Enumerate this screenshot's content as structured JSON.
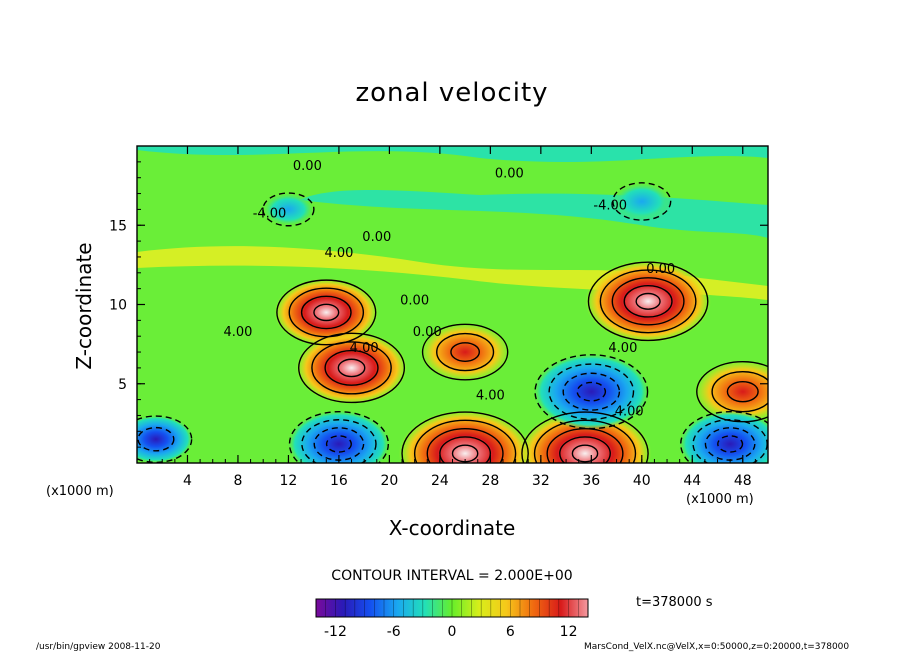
{
  "chart_data": {
    "type": "heatmap",
    "title": "zonal velocity",
    "xlabel": "X-coordinate",
    "ylabel": "Z-coordinate",
    "x_unit": "(x1000 m)",
    "xlim": [
      0,
      50
    ],
    "ylim": [
      0,
      20
    ],
    "x_ticks": [
      4,
      8,
      12,
      16,
      20,
      24,
      28,
      32,
      36,
      40,
      44,
      48
    ],
    "y_ticks": [
      5,
      10,
      15
    ],
    "colorbar": {
      "range": [
        -14,
        14
      ],
      "ticks": [
        -12,
        -6,
        0,
        6,
        12
      ],
      "colors": [
        "#7a0a9a",
        "#2a1ab8",
        "#1450f0",
        "#1aa8f0",
        "#22e0b8",
        "#66ee2a",
        "#d8ee1a",
        "#f6c81a",
        "#f06a10",
        "#d81a1a",
        "#f49aa0"
      ]
    },
    "contour_interval_text": "CONTOUR INTERVAL = 2.000E+00",
    "contour_labels": [
      "0.00",
      "4.00",
      "-4.00"
    ],
    "time_text": "t=378000 s",
    "features": [
      {
        "kind": "max",
        "x": 15.0,
        "z": 9.5,
        "value": 10
      },
      {
        "kind": "max",
        "x": 17.0,
        "z": 6.0,
        "value": 11
      },
      {
        "kind": "max",
        "x": 26.0,
        "z": 7.0,
        "value": 8
      },
      {
        "kind": "max",
        "x": 40.5,
        "z": 10.2,
        "value": 13
      },
      {
        "kind": "max",
        "x": 35.5,
        "z": 0.6,
        "value": 14
      },
      {
        "kind": "max",
        "x": 48.0,
        "z": 4.5,
        "value": 9
      },
      {
        "kind": "max",
        "x": 26.0,
        "z": 0.6,
        "value": 14
      },
      {
        "kind": "min",
        "x": 36.0,
        "z": 4.5,
        "value": -12
      },
      {
        "kind": "min",
        "x": 16.0,
        "z": 1.2,
        "value": -10
      },
      {
        "kind": "min",
        "x": 47.0,
        "z": 1.2,
        "value": -10
      },
      {
        "kind": "min",
        "x": 40.0,
        "z": 16.5,
        "value": -4
      },
      {
        "kind": "min",
        "x": 12.0,
        "z": 16.0,
        "value": -3
      },
      {
        "kind": "min",
        "x": 1.5,
        "z": 1.5,
        "value": -6
      }
    ]
  },
  "footer": {
    "left": "/usr/bin/gpview  2008-11-20",
    "right": "MarsCond_VelX.nc@VelX,x=0:50000,z=0:20000,t=378000"
  }
}
